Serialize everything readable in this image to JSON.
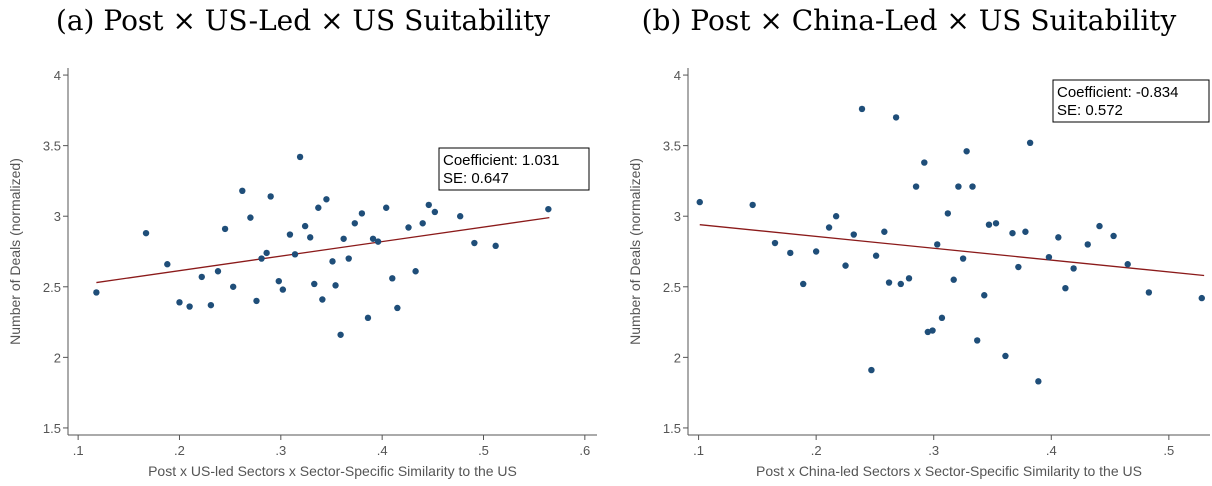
{
  "chart_data": [
    {
      "type": "scatter",
      "title": "(a) Post × US-Led × US Suitability",
      "xlabel": "Post x US-led Sectors x Sector-Specific Similarity to the US",
      "ylabel": "Number of Deals (normalized)",
      "xlim": [
        0.09,
        0.612
      ],
      "ylim": [
        1.45,
        4.05
      ],
      "xticks": [
        0.1,
        0.2,
        0.3,
        0.4,
        0.5,
        0.6
      ],
      "xtick_labels": [
        ".1",
        ".2",
        ".3",
        ".4",
        ".5",
        ".6"
      ],
      "yticks": [
        1.5,
        2,
        2.5,
        3,
        3.5,
        4
      ],
      "ytick_labels": [
        "1.5",
        "2",
        "2.5",
        "3",
        "3.5",
        "4"
      ],
      "grid": false,
      "marker_color": "#1f4e79",
      "line_color": "#8b1a1a",
      "fit_line": {
        "x": [
          0.118,
          0.565
        ],
        "y": [
          2.53,
          2.99
        ]
      },
      "annotation": [
        "Coefficient: 1.031",
        "SE: 0.647"
      ],
      "points": [
        [
          0.118,
          2.46
        ],
        [
          0.167,
          2.88
        ],
        [
          0.188,
          2.66
        ],
        [
          0.2,
          2.39
        ],
        [
          0.21,
          2.36
        ],
        [
          0.222,
          2.57
        ],
        [
          0.231,
          2.37
        ],
        [
          0.238,
          2.61
        ],
        [
          0.245,
          2.91
        ],
        [
          0.253,
          2.5
        ],
        [
          0.262,
          3.18
        ],
        [
          0.27,
          2.99
        ],
        [
          0.276,
          2.4
        ],
        [
          0.281,
          2.7
        ],
        [
          0.286,
          2.74
        ],
        [
          0.29,
          3.14
        ],
        [
          0.298,
          2.54
        ],
        [
          0.302,
          2.48
        ],
        [
          0.309,
          2.87
        ],
        [
          0.314,
          2.73
        ],
        [
          0.319,
          3.42
        ],
        [
          0.324,
          2.93
        ],
        [
          0.329,
          2.85
        ],
        [
          0.333,
          2.52
        ],
        [
          0.337,
          3.06
        ],
        [
          0.341,
          2.41
        ],
        [
          0.345,
          3.12
        ],
        [
          0.351,
          2.68
        ],
        [
          0.354,
          2.51
        ],
        [
          0.359,
          2.16
        ],
        [
          0.362,
          2.84
        ],
        [
          0.367,
          2.7
        ],
        [
          0.373,
          2.95
        ],
        [
          0.38,
          3.02
        ],
        [
          0.386,
          2.28
        ],
        [
          0.391,
          2.84
        ],
        [
          0.396,
          2.82
        ],
        [
          0.404,
          3.06
        ],
        [
          0.41,
          2.56
        ],
        [
          0.415,
          2.35
        ],
        [
          0.426,
          2.92
        ],
        [
          0.433,
          2.61
        ],
        [
          0.44,
          2.95
        ],
        [
          0.446,
          3.08
        ],
        [
          0.452,
          3.03
        ],
        [
          0.477,
          3.0
        ],
        [
          0.491,
          2.81
        ],
        [
          0.512,
          2.79
        ],
        [
          0.564,
          3.05
        ]
      ]
    },
    {
      "type": "scatter",
      "title": "(b) Post × China-Led × US Suitability",
      "xlabel": "Post x China-led Sectors x Sector-Specific Similarity to the US",
      "ylabel": "Number of Deals (normalized)",
      "xlim": [
        0.091,
        0.535
      ],
      "ylim": [
        1.45,
        4.05
      ],
      "xticks": [
        0.1,
        0.2,
        0.3,
        0.4,
        0.5
      ],
      "xtick_labels": [
        ".1",
        ".2",
        ".3",
        ".4",
        ".5"
      ],
      "yticks": [
        1.5,
        2,
        2.5,
        3,
        3.5,
        4
      ],
      "ytick_labels": [
        "1.5",
        "2",
        "2.5",
        "3",
        "3.5",
        "4"
      ],
      "grid": false,
      "marker_color": "#1f4e79",
      "line_color": "#8b1a1a",
      "fit_line": {
        "x": [
          0.101,
          0.53
        ],
        "y": [
          2.94,
          2.58
        ]
      },
      "annotation": [
        "Coefficient: -0.834",
        "SE: 0.572"
      ],
      "points": [
        [
          0.101,
          3.1
        ],
        [
          0.146,
          3.08
        ],
        [
          0.165,
          2.81
        ],
        [
          0.178,
          2.74
        ],
        [
          0.189,
          2.52
        ],
        [
          0.2,
          2.75
        ],
        [
          0.211,
          2.92
        ],
        [
          0.217,
          3.0
        ],
        [
          0.225,
          2.65
        ],
        [
          0.232,
          2.87
        ],
        [
          0.239,
          3.76
        ],
        [
          0.247,
          1.91
        ],
        [
          0.251,
          2.72
        ],
        [
          0.258,
          2.89
        ],
        [
          0.262,
          2.53
        ],
        [
          0.268,
          3.7
        ],
        [
          0.272,
          2.52
        ],
        [
          0.279,
          2.56
        ],
        [
          0.285,
          3.21
        ],
        [
          0.292,
          3.38
        ],
        [
          0.295,
          2.18
        ],
        [
          0.299,
          2.19
        ],
        [
          0.303,
          2.8
        ],
        [
          0.307,
          2.28
        ],
        [
          0.312,
          3.02
        ],
        [
          0.317,
          2.55
        ],
        [
          0.321,
          3.21
        ],
        [
          0.325,
          2.7
        ],
        [
          0.328,
          3.46
        ],
        [
          0.333,
          3.21
        ],
        [
          0.337,
          2.12
        ],
        [
          0.343,
          2.44
        ],
        [
          0.347,
          2.94
        ],
        [
          0.353,
          2.95
        ],
        [
          0.361,
          2.01
        ],
        [
          0.367,
          2.88
        ],
        [
          0.372,
          2.64
        ],
        [
          0.378,
          2.89
        ],
        [
          0.382,
          3.52
        ],
        [
          0.389,
          1.83
        ],
        [
          0.398,
          2.71
        ],
        [
          0.406,
          2.85
        ],
        [
          0.412,
          2.49
        ],
        [
          0.419,
          2.63
        ],
        [
          0.431,
          2.8
        ],
        [
          0.441,
          2.93
        ],
        [
          0.453,
          2.86
        ],
        [
          0.465,
          2.66
        ],
        [
          0.483,
          2.46
        ],
        [
          0.528,
          2.42
        ]
      ]
    }
  ]
}
